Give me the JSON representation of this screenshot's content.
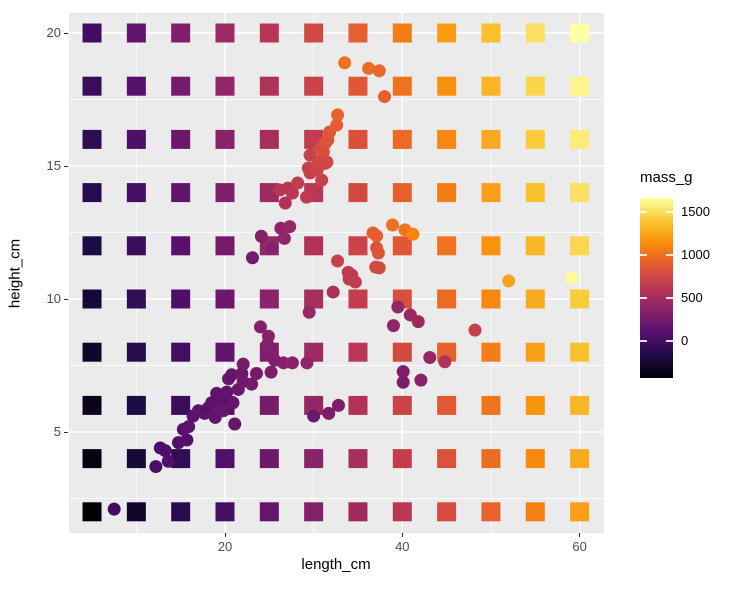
{
  "axes": {
    "x_label": "length_cm",
    "y_label": "height_cm",
    "x_ticks": [
      20,
      40,
      60
    ],
    "y_ticks": [
      5,
      10,
      15,
      20
    ],
    "x_minor_gridlines": [
      10,
      30,
      50
    ],
    "y_minor_gridlines": [
      2.5,
      7.5,
      12.5,
      17.5
    ]
  },
  "legend": {
    "title": "mass_g",
    "ticks": [
      1500,
      1000,
      500,
      0
    ]
  },
  "colors": {
    "panel_background": "#EBEBEB",
    "gridline": "#FFFFFF",
    "tick_text": "#4D4D4D",
    "tick_mark": "#333333",
    "page_background": "#FFFFFF"
  },
  "chart_data": {
    "type": "scatter",
    "title": "",
    "xlabel": "length_cm",
    "ylabel": "height_cm",
    "color_label": "mass_g",
    "xlim": [
      2.4,
      62.7
    ],
    "ylim": [
      1.2,
      20.75
    ],
    "x_ticks": [
      20,
      40,
      60
    ],
    "y_ticks": [
      5,
      10,
      15,
      20
    ],
    "grid": "on",
    "legend_position": "right",
    "color_scale": {
      "name": "inferno",
      "domain": [
        -434,
        1666
      ],
      "legend_ticks": [
        1500,
        1000,
        500,
        0
      ],
      "stops": [
        "#000004",
        "#1F0C48",
        "#550F6D",
        "#88226A",
        "#BA3655",
        "#E35933",
        "#F98C0A",
        "#F9C932",
        "#FCFFA4"
      ]
    },
    "tile_grid": {
      "description": "square prediction-surface tiles, mass predicted from length and height",
      "x_values": [
        5,
        10,
        15,
        20,
        25,
        30,
        35,
        40,
        45,
        50,
        55,
        60
      ],
      "y_values": [
        2,
        4,
        6,
        8,
        10,
        12,
        14,
        16,
        18,
        20
      ],
      "model": {
        "intercept": -633.8,
        "length_coef": 30.2,
        "height_coef": 24.4
      }
    },
    "points_format": [
      "length_cm",
      "height_cm",
      "mass_g"
    ],
    "points": [
      [
        7.5,
        2.1,
        5.9
      ],
      [
        12.2,
        3.7,
        32
      ],
      [
        12.7,
        4.4,
        40
      ],
      [
        13.25,
        4.3,
        51
      ],
      [
        13.6,
        3.9,
        70
      ],
      [
        14.75,
        4.6,
        78
      ],
      [
        15.7,
        4.7,
        87
      ],
      [
        15.3,
        5.1,
        110
      ],
      [
        15.9,
        5.2,
        120
      ],
      [
        16.4,
        5.6,
        120
      ],
      [
        17.0,
        5.8,
        130
      ],
      [
        17.7,
        5.7,
        135
      ],
      [
        18.1,
        5.9,
        110
      ],
      [
        18.5,
        6.1,
        130
      ],
      [
        18.9,
        5.55,
        150
      ],
      [
        19.06,
        6.45,
        150
      ],
      [
        19.25,
        6.0,
        160
      ],
      [
        19.8,
        5.8,
        170
      ],
      [
        20.2,
        6.5,
        145
      ],
      [
        20.4,
        7.0,
        188
      ],
      [
        20.75,
        7.15,
        180
      ],
      [
        20.9,
        6.1,
        180
      ],
      [
        21.1,
        5.3,
        188
      ],
      [
        21.5,
        6.6,
        197
      ],
      [
        21.9,
        7.2,
        218
      ],
      [
        22.05,
        7.55,
        250
      ],
      [
        22.05,
        6.9,
        225
      ],
      [
        23.0,
        6.8,
        250
      ],
      [
        23.55,
        7.2,
        260
      ],
      [
        25.2,
        7.25,
        300
      ],
      [
        24.0,
        8.95,
        330
      ],
      [
        24.9,
        8.6,
        345
      ],
      [
        24.8,
        8.3,
        330
      ],
      [
        25.6,
        7.7,
        320
      ],
      [
        26.6,
        7.6,
        340
      ],
      [
        27.6,
        7.6,
        360
      ],
      [
        29.25,
        7.6,
        400
      ],
      [
        29.5,
        9.5,
        430
      ],
      [
        23.1,
        11.55,
        242
      ],
      [
        24.1,
        12.36,
        330
      ],
      [
        25.3,
        11.9,
        340
      ],
      [
        26.3,
        12.66,
        390
      ],
      [
        26.7,
        12.28,
        400
      ],
      [
        27.3,
        12.72,
        420
      ],
      [
        26.2,
        14.1,
        600
      ],
      [
        26.8,
        13.61,
        560
      ],
      [
        27.1,
        14.17,
        610
      ],
      [
        27.6,
        13.98,
        620
      ],
      [
        28.2,
        14.36,
        650
      ],
      [
        29.2,
        13.83,
        650
      ],
      [
        29.4,
        14.92,
        700
      ],
      [
        29.6,
        14.74,
        690
      ],
      [
        29.6,
        15.41,
        700
      ],
      [
        30.4,
        14.85,
        720
      ],
      [
        30.5,
        15.11,
        730
      ],
      [
        30.9,
        14.47,
        700
      ],
      [
        30.7,
        15.66,
        780
      ],
      [
        30.9,
        15.23,
        740
      ],
      [
        31.1,
        15.53,
        800
      ],
      [
        31.3,
        15.86,
        820
      ],
      [
        31.3,
        15.1,
        730
      ],
      [
        31.5,
        15.15,
        750
      ],
      [
        31.6,
        15.98,
        840
      ],
      [
        31.8,
        16.28,
        850
      ],
      [
        32.6,
        16.54,
        900
      ],
      [
        32.7,
        16.92,
        925
      ],
      [
        33.5,
        18.88,
        1000
      ],
      [
        36.2,
        18.67,
        975
      ],
      [
        37.4,
        18.58,
        950
      ],
      [
        38.0,
        17.61,
        900
      ],
      [
        32.2,
        10.26,
        540
      ],
      [
        32.7,
        11.43,
        700
      ],
      [
        33.9,
        11.0,
        650
      ],
      [
        34.0,
        10.75,
        640
      ],
      [
        34.3,
        10.9,
        650
      ],
      [
        34.7,
        10.64,
        660
      ],
      [
        36.7,
        12.48,
        900
      ],
      [
        37.1,
        12.37,
        900
      ],
      [
        37.1,
        11.92,
        820
      ],
      [
        37.3,
        11.73,
        840
      ],
      [
        37.0,
        11.2,
        750
      ],
      [
        37.4,
        11.17,
        770
      ],
      [
        38.9,
        12.78,
        1000
      ],
      [
        40.3,
        12.6,
        1015
      ],
      [
        41.2,
        12.44,
        1100
      ],
      [
        30.0,
        5.6,
        200
      ],
      [
        31.7,
        5.7,
        300
      ],
      [
        32.8,
        6.0,
        300
      ],
      [
        39.0,
        9.0,
        400
      ],
      [
        39.5,
        9.7,
        420
      ],
      [
        40.9,
        9.4,
        440
      ],
      [
        41.8,
        9.15,
        460
      ],
      [
        40.1,
        7.27,
        300
      ],
      [
        40.1,
        6.87,
        290
      ],
      [
        42.1,
        6.95,
        345
      ],
      [
        43.1,
        7.8,
        430
      ],
      [
        44.8,
        7.64,
        580
      ],
      [
        48.2,
        8.83,
        700
      ],
      [
        52.0,
        10.68,
        1250
      ],
      [
        59.1,
        10.79,
        1650
      ]
    ]
  }
}
